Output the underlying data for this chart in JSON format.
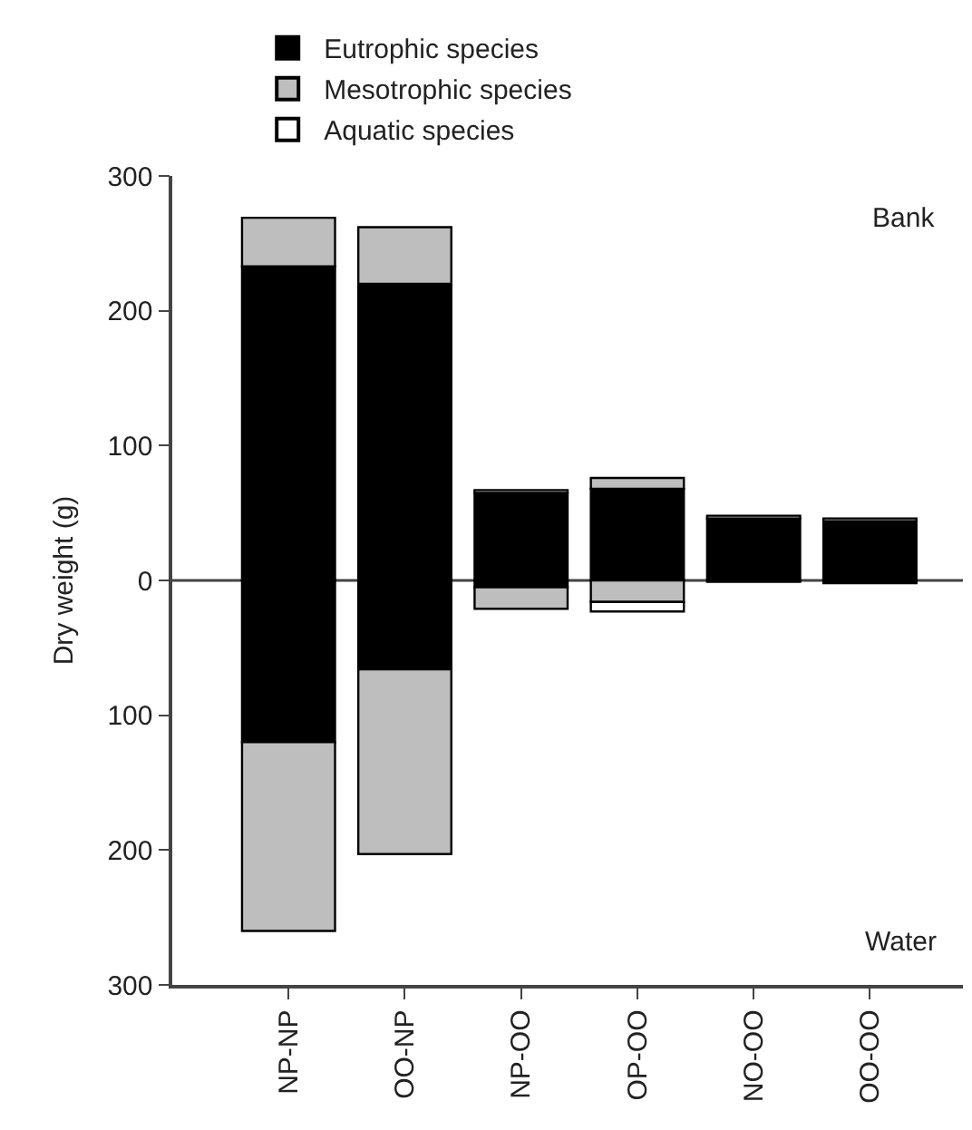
{
  "chart_data": {
    "type": "bar",
    "stacked": true,
    "ylabel": "Dry weight (g)",
    "categories": [
      "NP-NP",
      "OO-NP",
      "NP-OO",
      "OP-OO",
      "NO-OO",
      "OO-OO"
    ],
    "series": [
      {
        "name": "Eutrophic species",
        "color": "#000000",
        "values": [
          233,
          220,
          65,
          68,
          46,
          44
        ]
      },
      {
        "name": "Mesotrophic species",
        "color": "#bebebe",
        "values": [
          36,
          42,
          2,
          8,
          2,
          2
        ]
      },
      {
        "color": "#000000",
        "values": [
          -120,
          -66,
          -5,
          null,
          -1,
          -2
        ]
      },
      {
        "color": "#bebebe",
        "values": [
          -140,
          -137,
          -16,
          -16,
          null,
          null
        ]
      },
      {
        "name": "Aquatic species",
        "color": "#ffffff",
        "values": [
          null,
          null,
          null,
          -7,
          null,
          null
        ]
      }
    ],
    "ylim": [
      -300,
      300
    ],
    "yticks": [
      {
        "value": -300,
        "label": "300"
      },
      {
        "value": -200,
        "label": "200"
      },
      {
        "value": -100,
        "label": "100"
      },
      0,
      100,
      200,
      300
    ],
    "ref_lines": [
      {
        "axis": "y",
        "value": 0
      }
    ],
    "annotations": [
      "Bank",
      "Water"
    ],
    "legend": "top"
  }
}
